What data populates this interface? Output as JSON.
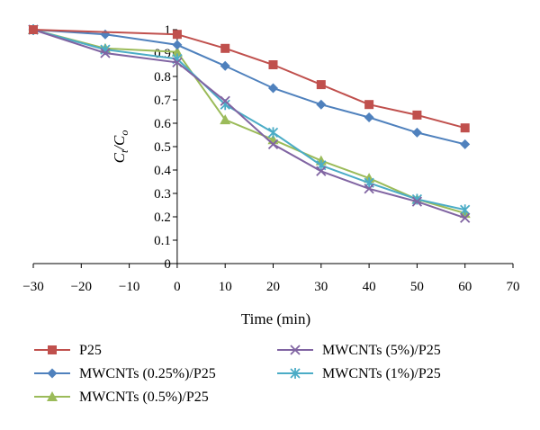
{
  "chart_data": {
    "type": "line",
    "title": "",
    "xlabel": "Time (min)",
    "ylabel": "C",
    "ylabel_sub1": "t",
    "ylabel_slash": "/C",
    "ylabel_sub2": "o",
    "xlim": [
      -30,
      70
    ],
    "ylim": [
      0,
      1
    ],
    "x_ticks": [
      -30,
      -20,
      -10,
      0,
      10,
      20,
      30,
      40,
      50,
      60,
      70
    ],
    "x_tick_labels": [
      "−30",
      "−20",
      "−10",
      "0",
      "10",
      "20",
      "30",
      "40",
      "50",
      "60",
      "70"
    ],
    "y_ticks": [
      0,
      0.1,
      0.2,
      0.3,
      0.4,
      0.5,
      0.6,
      0.7,
      0.8,
      0.9,
      1
    ],
    "y_tick_labels": [
      "0",
      "0.1",
      "0.2",
      "0.3",
      "0.4",
      "0.5",
      "0.6",
      "0.7",
      "0.8",
      "0.9",
      "1"
    ],
    "grid": false,
    "legend_position": "bottom",
    "series": [
      {
        "name": "P25",
        "color": "#c0504d",
        "marker": "square",
        "x": [
          -30,
          0,
          10,
          20,
          30,
          40,
          50,
          60
        ],
        "y": [
          1.0,
          0.98,
          0.92,
          0.85,
          0.765,
          0.68,
          0.635,
          0.58
        ]
      },
      {
        "name": "MWCNTs (0.25%)/P25",
        "color": "#4f81bd",
        "marker": "diamond",
        "x": [
          -30,
          -15,
          0,
          10,
          20,
          30,
          40,
          50,
          60
        ],
        "y": [
          1.0,
          0.98,
          0.935,
          0.845,
          0.75,
          0.68,
          0.625,
          0.56,
          0.51
        ]
      },
      {
        "name": "MWCNTs (0.5%)/P25",
        "color": "#9bbb59",
        "marker": "triangle",
        "x": [
          -30,
          -15,
          0,
          10,
          20,
          30,
          40,
          50,
          60
        ],
        "y": [
          1.0,
          0.92,
          0.905,
          0.615,
          0.53,
          0.44,
          0.365,
          0.275,
          0.215
        ]
      },
      {
        "name": "MWCNTs (5%)/P25",
        "color": "#8064a2",
        "marker": "x",
        "x": [
          -30,
          -15,
          0,
          10,
          20,
          30,
          40,
          50,
          60
        ],
        "y": [
          1.0,
          0.9,
          0.86,
          0.695,
          0.51,
          0.395,
          0.32,
          0.265,
          0.195
        ]
      },
      {
        "name": "MWCNTs (1%)/P25",
        "color": "#4bacc6",
        "marker": "star",
        "x": [
          -30,
          -15,
          0,
          10,
          20,
          30,
          40,
          50,
          60
        ],
        "y": [
          1.0,
          0.915,
          0.875,
          0.68,
          0.56,
          0.42,
          0.345,
          0.275,
          0.23
        ]
      }
    ],
    "legend_order": [
      0,
      3,
      1,
      4,
      2
    ]
  }
}
